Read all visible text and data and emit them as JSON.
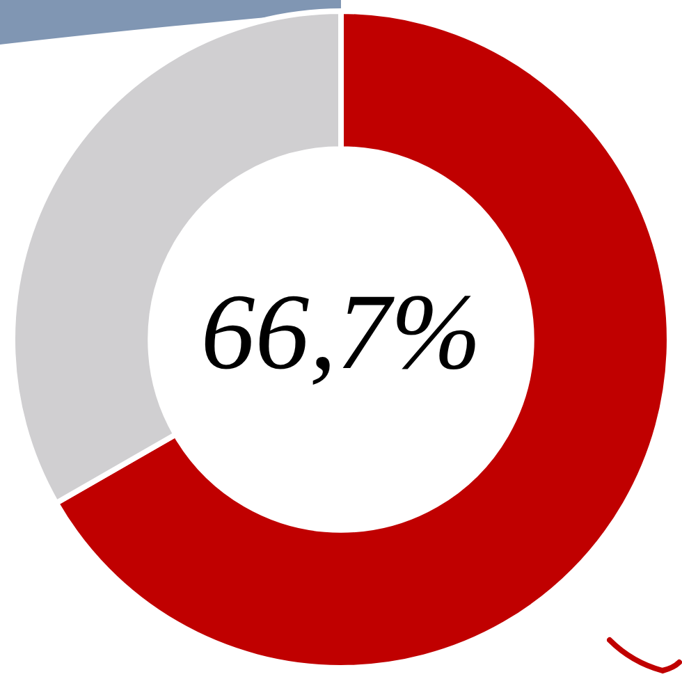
{
  "chart_data": {
    "type": "donut",
    "categories": [
      null,
      null
    ],
    "values": [
      66.7,
      33.3
    ],
    "colors": [
      "#c00000",
      "#d0cfd1"
    ],
    "legend": false,
    "annotations": [
      "66,7%"
    ]
  }
}
